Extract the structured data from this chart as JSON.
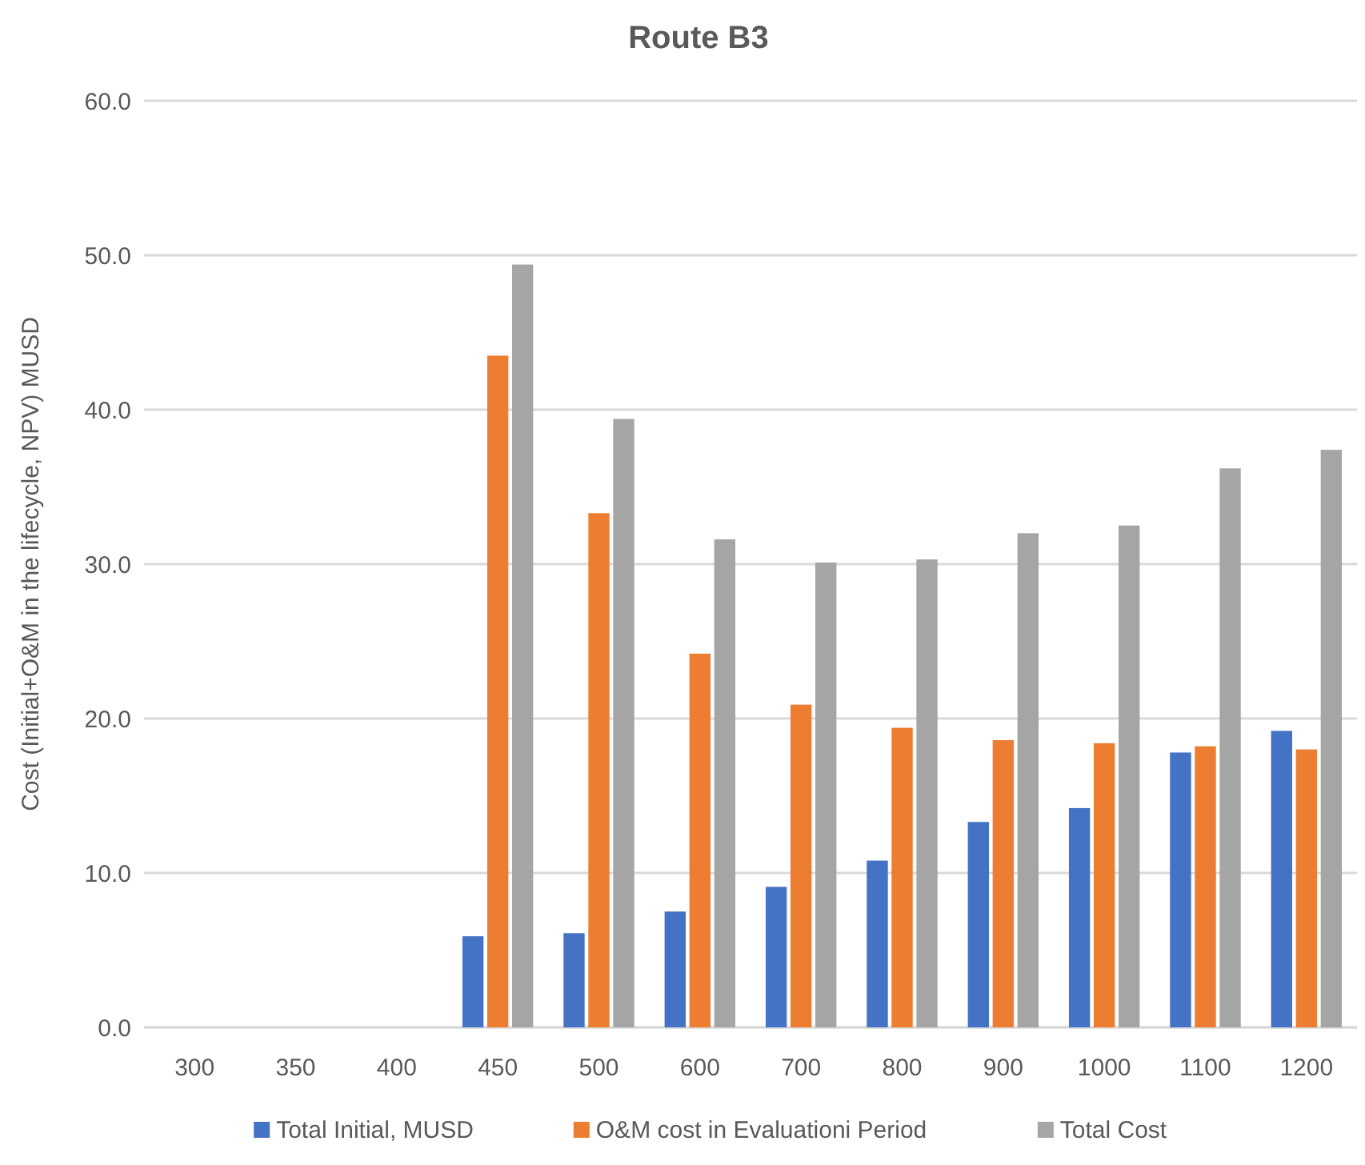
{
  "chart_data": {
    "type": "bar",
    "title": "Route B3",
    "ylabel": "Cost  (Initial+O&M in the lifecycle, NPV) MUSD",
    "categories": [
      "300",
      "350",
      "400",
      "450",
      "500",
      "600",
      "700",
      "800",
      "900",
      "1000",
      "1100",
      "1200"
    ],
    "series": [
      {
        "name": "Total Initial, MUSD",
        "color": "#4472c4",
        "values": [
          null,
          null,
          null,
          5.9,
          6.1,
          7.5,
          9.1,
          10.8,
          13.3,
          14.2,
          17.8,
          19.2
        ]
      },
      {
        "name": "O&M cost in Evaluationi Period",
        "color": "#ed7d31",
        "values": [
          null,
          null,
          null,
          43.5,
          33.3,
          24.2,
          20.9,
          19.4,
          18.6,
          18.4,
          18.2,
          18.0
        ]
      },
      {
        "name": "Total Cost",
        "color": "#a5a5a5",
        "values": [
          null,
          null,
          null,
          49.4,
          39.4,
          31.6,
          30.1,
          30.3,
          32.0,
          32.5,
          36.2,
          37.4
        ]
      }
    ],
    "ylim": [
      0,
      60
    ],
    "yticks": [
      {
        "value": 0,
        "label": "0.0"
      },
      {
        "value": 10,
        "label": "10.0"
      },
      {
        "value": 20,
        "label": "20.0"
      },
      {
        "value": 30,
        "label": "30.0"
      },
      {
        "value": 40,
        "label": "40.0"
      },
      {
        "value": 50,
        "label": "50.0"
      },
      {
        "value": 60,
        "label": "60.0"
      }
    ],
    "grid": "y",
    "legend": "bottom"
  }
}
